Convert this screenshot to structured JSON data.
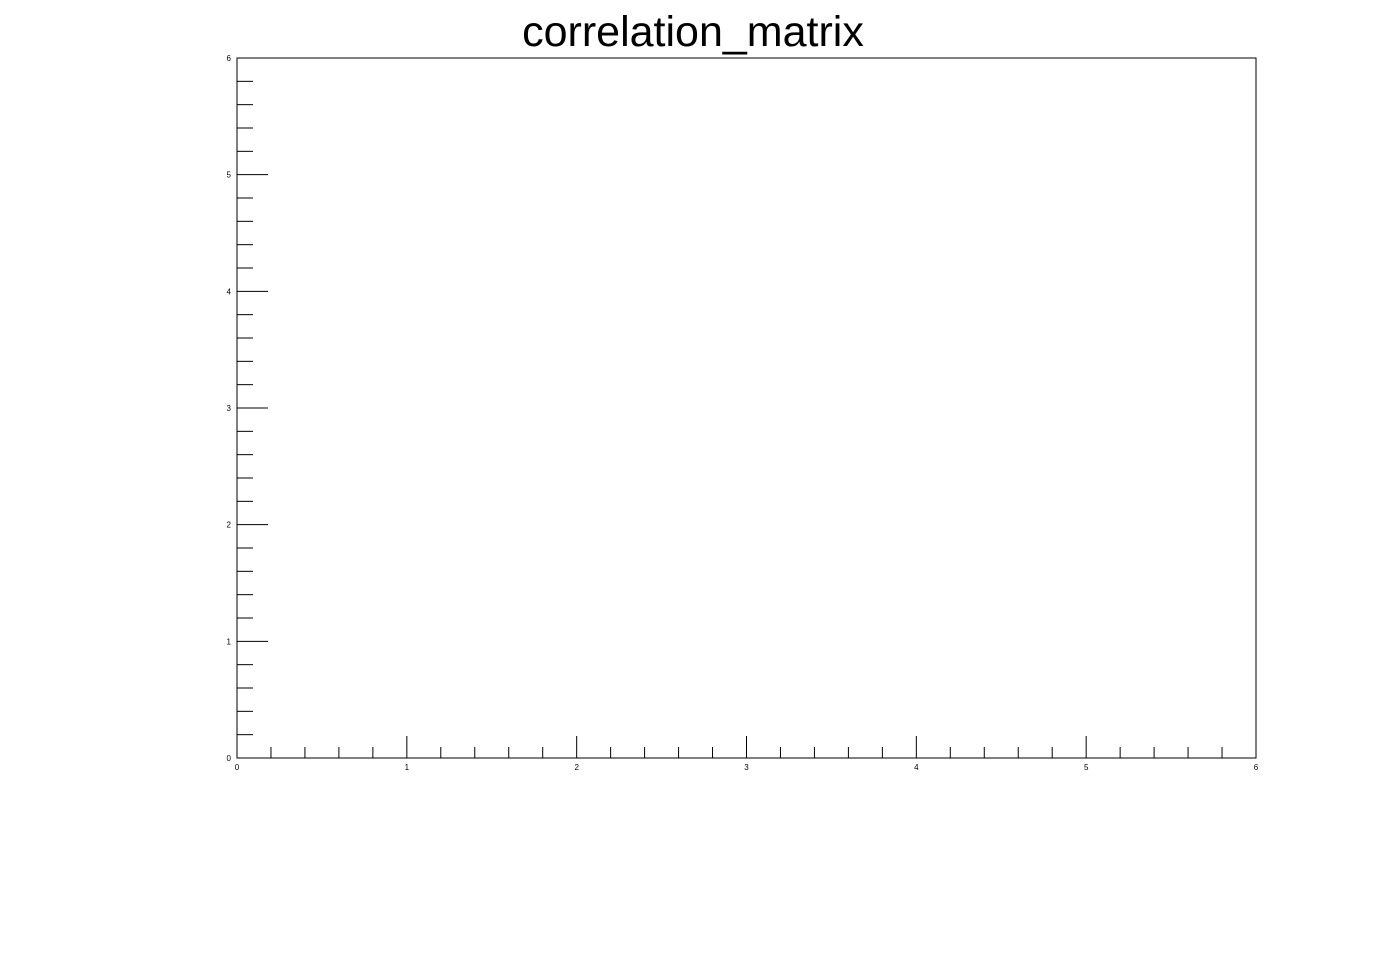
{
  "chart_data": {
    "type": "heatmap",
    "title": "correlation_matrix",
    "xlabel": "",
    "ylabel": "",
    "xlim": [
      0,
      6
    ],
    "ylim": [
      0,
      6
    ],
    "x_ticks": [
      "0",
      "1",
      "2",
      "3",
      "4",
      "5",
      "6"
    ],
    "y_ticks": [
      "0",
      "1",
      "2",
      "3",
      "4",
      "5",
      "6"
    ],
    "minor_ticks_per_major": 5,
    "grid": false,
    "legend": "none",
    "values": [],
    "colors": {
      "background": "#ffffff",
      "axis": "#000000"
    }
  }
}
